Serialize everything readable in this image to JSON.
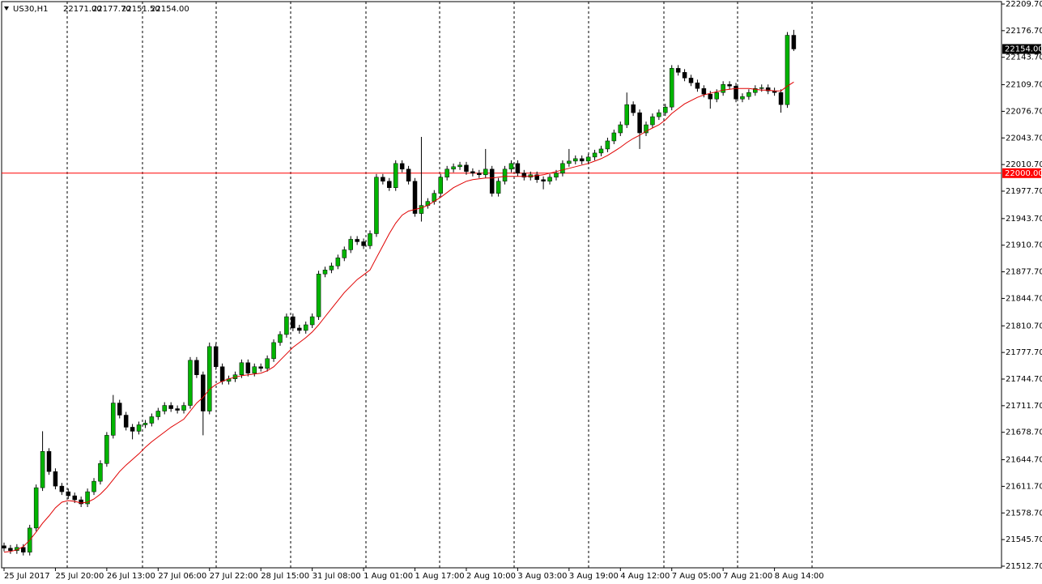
{
  "chart_data": {
    "type": "candlestick",
    "header": {
      "symbol": "US30,H1",
      "quote": [
        "22171.00",
        "22177.70",
        "22151.50",
        "22154.00"
      ]
    },
    "categories": [
      "25 Jul 2017",
      null,
      null,
      null,
      null,
      null,
      null,
      null,
      "25 Jul 20:00",
      null,
      null,
      null,
      null,
      null,
      null,
      null,
      "26 Jul 13:00",
      null,
      null,
      null,
      null,
      null,
      null,
      null,
      "27 Jul 06:00",
      null,
      null,
      null,
      null,
      null,
      null,
      null,
      "27 Jul 22:00",
      null,
      null,
      null,
      null,
      null,
      null,
      null,
      "28 Jul 15:00",
      null,
      null,
      null,
      null,
      null,
      null,
      null,
      "31 Jul 08:00",
      null,
      null,
      null,
      null,
      null,
      null,
      null,
      "1 Aug 01:00",
      null,
      null,
      null,
      null,
      null,
      null,
      null,
      "1 Aug 17:00",
      null,
      null,
      null,
      null,
      null,
      null,
      null,
      "2 Aug 10:00",
      null,
      null,
      null,
      null,
      null,
      null,
      null,
      "3 Aug 03:00",
      null,
      null,
      null,
      null,
      null,
      null,
      null,
      "3 Aug 19:00",
      null,
      null,
      null,
      null,
      null,
      null,
      null,
      "4 Aug 12:00",
      null,
      null,
      null,
      null,
      null,
      null,
      null,
      "7 Aug 05:00",
      null,
      null,
      null,
      null,
      null,
      null,
      null,
      "7 Aug 21:00",
      null,
      null,
      null,
      null,
      null,
      null,
      null,
      "8 Aug 14:00",
      null,
      null,
      null
    ],
    "open": [
      21538,
      21535,
      21532,
      21536,
      21530,
      21560,
      21610,
      21655,
      21630,
      21612,
      21605,
      21600,
      21595,
      21590,
      21605,
      21618,
      21640,
      21675,
      21715,
      21700,
      21685,
      21680,
      21688,
      21690,
      21698,
      21705,
      21712,
      21708,
      21706,
      21712,
      21768,
      21750,
      21705,
      21785,
      21760,
      21742,
      21745,
      21750,
      21765,
      21752,
      21760,
      21758,
      21770,
      21790,
      21800,
      21822,
      21808,
      21805,
      21812,
      21822,
      21875,
      21880,
      21885,
      21895,
      21905,
      21918,
      21915,
      21910,
      21925,
      21995,
      21990,
      21982,
      22012,
      22005,
      21990,
      21950,
      21960,
      21965,
      21975,
      21995,
      22005,
      22008,
      22010,
      22002,
      22000,
      21998,
      22005,
      21975,
      21990,
      22005,
      22012,
      22000,
      21995,
      21998,
      21992,
      21990,
      21995,
      22000,
      22012,
      22015,
      22018,
      22015,
      22020,
      22025,
      22030,
      22040,
      22050,
      22060,
      22085,
      22075,
      22050,
      22060,
      22070,
      22075,
      22082,
      22130,
      22125,
      22118,
      22112,
      22105,
      22098,
      22092,
      22100,
      22110,
      22108,
      22092,
      22095,
      22100,
      22105,
      22106,
      22102,
      22100,
      22085,
      22171
    ],
    "high": [
      21542,
      21539,
      21540,
      21540,
      21564,
      21614,
      21680,
      21659,
      21634,
      21616,
      21609,
      21604,
      21599,
      21609,
      21622,
      21644,
      21679,
      21725,
      21719,
      21704,
      21689,
      21692,
      21694,
      21702,
      21709,
      21716,
      21716,
      21712,
      21716,
      21772,
      21772,
      21754,
      21790,
      21789,
      21764,
      21749,
      21754,
      21769,
      21769,
      21764,
      21764,
      21774,
      21794,
      21804,
      21826,
      21826,
      21812,
      21816,
      21826,
      21879,
      21884,
      21889,
      21899,
      21909,
      21922,
      21922,
      21919,
      21929,
      21999,
      21999,
      21994,
      22016,
      22016,
      22009,
      21994,
      22045,
      21969,
      21979,
      21999,
      22009,
      22012,
      22014,
      22014,
      22006,
      22004,
      22030,
      22009,
      21994,
      22009,
      22016,
      22016,
      22004,
      22002,
      22002,
      21996,
      21999,
      22004,
      22016,
      22030,
      22022,
      22022,
      22024,
      22029,
      22034,
      22044,
      22054,
      22064,
      22100,
      22089,
      22079,
      22064,
      22074,
      22079,
      22086,
      22134,
      22134,
      22129,
      22122,
      22116,
      22109,
      22102,
      22104,
      22114,
      22114,
      22112,
      22099,
      22104,
      22109,
      22110,
      22110,
      22106,
      22104,
      22175,
      22177.7
    ],
    "low": [
      21531,
      21528,
      21528,
      21526,
      21526,
      21556,
      21606,
      21626,
      21608,
      21601,
      21596,
      21591,
      21586,
      21586,
      21601,
      21614,
      21636,
      21671,
      21696,
      21681,
      21670,
      21676,
      21684,
      21686,
      21694,
      21701,
      21704,
      21702,
      21702,
      21708,
      21746,
      21675,
      21701,
      21756,
      21738,
      21738,
      21741,
      21746,
      21748,
      21748,
      21754,
      21754,
      21766,
      21786,
      21796,
      21804,
      21801,
      21801,
      21808,
      21818,
      21871,
      21876,
      21881,
      21891,
      21901,
      21911,
      21906,
      21906,
      21921,
      21986,
      21978,
      21978,
      22001,
      21986,
      21946,
      21940,
      21956,
      21961,
      21971,
      21991,
      22001,
      22004,
      21998,
      21996,
      21994,
      21994,
      21971,
      21971,
      21986,
      22001,
      21996,
      21991,
      21991,
      21988,
      21980,
      21986,
      21991,
      21996,
      22008,
      22011,
      22011,
      22011,
      22016,
      22021,
      22026,
      22036,
      22046,
      22056,
      22071,
      22030,
      22046,
      22056,
      22066,
      22071,
      22078,
      22121,
      22114,
      22108,
      22101,
      22094,
      22080,
      22088,
      22096,
      22104,
      22088,
      22088,
      22091,
      22096,
      22101,
      22098,
      22096,
      22075,
      22081,
      22151.5
    ],
    "close": [
      21535,
      21532,
      21536,
      21530,
      21560,
      21610,
      21655,
      21630,
      21612,
      21605,
      21600,
      21595,
      21590,
      21605,
      21618,
      21640,
      21675,
      21715,
      21700,
      21685,
      21680,
      21688,
      21690,
      21698,
      21705,
      21712,
      21708,
      21706,
      21712,
      21768,
      21750,
      21705,
      21785,
      21760,
      21742,
      21745,
      21750,
      21765,
      21752,
      21760,
      21758,
      21770,
      21790,
      21800,
      21822,
      21808,
      21805,
      21812,
      21822,
      21875,
      21880,
      21885,
      21895,
      21905,
      21918,
      21915,
      21910,
      21925,
      21995,
      21990,
      21982,
      22012,
      22005,
      21990,
      21950,
      21960,
      21965,
      21975,
      21995,
      22005,
      22008,
      22010,
      22002,
      22000,
      21998,
      22005,
      21975,
      21990,
      22005,
      22012,
      22000,
      21995,
      21998,
      21992,
      21990,
      21995,
      22000,
      22012,
      22015,
      22018,
      22015,
      22020,
      22025,
      22030,
      22040,
      22050,
      22060,
      22085,
      22075,
      22050,
      22060,
      22070,
      22075,
      22082,
      22130,
      22125,
      22118,
      22112,
      22105,
      22098,
      22092,
      22100,
      22110,
      22108,
      22092,
      22095,
      22100,
      22105,
      22106,
      22102,
      22100,
      22085,
      22171,
      22154
    ],
    "up_color": "#00b400",
    "down_color": "#000000",
    "moving_average": {
      "color": "#e00000",
      "values": [
        21530,
        21531,
        21533,
        21537,
        21545,
        21555,
        21566,
        21575,
        21585,
        21592,
        21594,
        21593,
        21591,
        21592,
        21596,
        21602,
        21610,
        21620,
        21630,
        21638,
        21645,
        21652,
        21660,
        21667,
        21673,
        21679,
        21685,
        21690,
        21695,
        21705,
        21715,
        21722,
        21732,
        21738,
        21742,
        21745,
        21747,
        21749,
        21750,
        21751,
        21752,
        21755,
        21760,
        21768,
        21776,
        21784,
        21790,
        21796,
        21803,
        21812,
        21822,
        21832,
        21842,
        21852,
        21860,
        21868,
        21874,
        21880,
        21895,
        21910,
        21925,
        21938,
        21948,
        21953,
        21955,
        21957,
        21960,
        21965,
        21970,
        21976,
        21982,
        21986,
        21990,
        21992,
        21993,
        21994,
        21994,
        21995,
        21996,
        21996,
        21996,
        21996,
        21996,
        21997,
        21998,
        22000,
        22002,
        22004,
        22006,
        22008,
        22010,
        22012,
        22015,
        22018,
        22022,
        22027,
        22032,
        22038,
        22043,
        22047,
        22052,
        22056,
        22060,
        22066,
        22074,
        22080,
        22086,
        22090,
        22094,
        22097,
        22099,
        22101,
        22103,
        22104,
        22105,
        22105,
        22105,
        22104,
        22103,
        22103,
        22102,
        22102,
        22108,
        22113
      ]
    },
    "hline": {
      "value": 22000,
      "label": "22000.00",
      "color": "#ff0000"
    },
    "last_price": {
      "value": 22154,
      "label": "22154.00",
      "color": "#000000"
    },
    "ylim": [
      21512.7,
      22209.7
    ],
    "yticks": [
      {
        "value": 21512.7,
        "label": "21512.70"
      },
      {
        "value": 21545.7,
        "label": "21545.70"
      },
      {
        "value": 21578.7,
        "label": "21578.70"
      },
      {
        "value": 21611.7,
        "label": "21611.70"
      },
      {
        "value": 21644.7,
        "label": "21644.70"
      },
      {
        "value": 21678.7,
        "label": "21678.70"
      },
      {
        "value": 21711.7,
        "label": "21711.70"
      },
      {
        "value": 21744.7,
        "label": "21744.70"
      },
      {
        "value": 21777.7,
        "label": "21777.70"
      },
      {
        "value": 21810.7,
        "label": "21810.70"
      },
      {
        "value": 21844.7,
        "label": "21844.70"
      },
      {
        "value": 21877.7,
        "label": "21877.70"
      },
      {
        "value": 21910.7,
        "label": "21910.70"
      },
      {
        "value": 21943.7,
        "label": "21943.70"
      },
      {
        "value": 21977.7,
        "label": "21977.70"
      },
      {
        "value": 22010.7,
        "label": "22010.70"
      },
      {
        "value": 22043.7,
        "label": "22043.70"
      },
      {
        "value": 22076.7,
        "label": "22076.70"
      },
      {
        "value": 22109.7,
        "label": "22109.70"
      },
      {
        "value": 22143.7,
        "label": "22143.70"
      },
      {
        "value": 22176.7,
        "label": "22176.70"
      },
      {
        "value": 22209.7,
        "label": "22209.70"
      }
    ]
  }
}
